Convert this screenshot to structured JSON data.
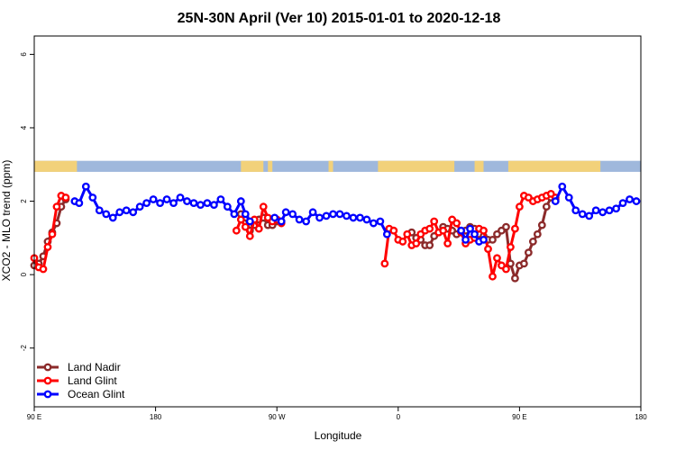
{
  "chart_data": {
    "type": "line",
    "title": "25N-30N April (Ver 10)   2015-01-01 to 2020-12-18",
    "xlabel": "Longitude",
    "ylabel": "XCO2 - MLO trend (ppm)",
    "xlim": [
      -90,
      180
    ],
    "ylim": [
      -3.6,
      6.5
    ],
    "x_ticks": [
      {
        "value": -90,
        "label": "90 E"
      },
      {
        "value": -36,
        "label": "180"
      },
      {
        "value": 18,
        "label": "90 W"
      },
      {
        "value": 72,
        "label": "0"
      },
      {
        "value": 126,
        "label": "90 E"
      },
      {
        "value": 180,
        "label": "180"
      }
    ],
    "y_ticks": [
      -2,
      0,
      2,
      4,
      6
    ],
    "grid": false,
    "legend_position": "bottom-left",
    "surface_strip": {
      "y_range": [
        2.8,
        3.1
      ],
      "ocean_color": "#9fb8dc",
      "land_color": "#f2d17a",
      "land_segments": [
        [
          -90,
          -71
        ],
        [
          2,
          12
        ],
        [
          14,
          16
        ],
        [
          41,
          43
        ],
        [
          63,
          97
        ],
        [
          106,
          110
        ],
        [
          121,
          162
        ]
      ]
    },
    "series": [
      {
        "name": "Land Nadir",
        "color": "#8b2a2a",
        "x": [
          -90,
          -88,
          -86,
          -84,
          -82,
          -80,
          -78,
          -76,
          2,
          4,
          6,
          8,
          10,
          12,
          14,
          16,
          18,
          20,
          78,
          80,
          82,
          84,
          86,
          88,
          90,
          92,
          94,
          96,
          98,
          100,
          102,
          104,
          106,
          108,
          110,
          112,
          114,
          116,
          118,
          120,
          122,
          124,
          126,
          128,
          130,
          132,
          134,
          136,
          138,
          140,
          142
        ],
        "y": [
          0.25,
          0.3,
          0.5,
          0.9,
          1.15,
          1.4,
          1.85,
          2.05,
          1.65,
          1.55,
          1.2,
          1.35,
          1.5,
          1.55,
          1.35,
          1.35,
          1.45,
          1.45,
          1.15,
          1.0,
          0.95,
          0.8,
          0.8,
          1.05,
          1.15,
          1.3,
          1.25,
          1.2,
          1.1,
          1.15,
          1.2,
          1.3,
          1.25,
          1.1,
          1.05,
          0.95,
          0.95,
          1.1,
          1.2,
          1.3,
          0.3,
          -0.1,
          0.25,
          0.3,
          0.6,
          0.9,
          1.1,
          1.35,
          1.85,
          2.1,
          2.05
        ]
      },
      {
        "name": "Land Glint",
        "color": "#ff0000",
        "x": [
          -90,
          -88,
          -86,
          -84,
          -82,
          -80,
          -78,
          -76,
          0,
          2,
          4,
          6,
          8,
          10,
          12,
          14,
          16,
          18,
          20,
          66,
          68,
          70,
          72,
          74,
          76,
          78,
          80,
          82,
          84,
          86,
          88,
          90,
          92,
          94,
          96,
          98,
          100,
          102,
          104,
          106,
          108,
          110,
          112,
          114,
          116,
          118,
          120,
          122,
          124,
          126,
          128,
          130,
          132,
          134,
          136,
          138,
          140,
          142
        ],
        "y": [
          0.45,
          0.2,
          0.15,
          0.75,
          1.1,
          1.85,
          2.15,
          2.1,
          1.2,
          1.5,
          1.3,
          1.05,
          1.5,
          1.25,
          1.85,
          1.55,
          1.45,
          1.5,
          1.4,
          0.3,
          1.25,
          1.2,
          0.95,
          0.9,
          1.1,
          0.8,
          0.85,
          1.1,
          1.2,
          1.25,
          1.45,
          1.15,
          1.2,
          0.85,
          1.5,
          1.4,
          1.15,
          0.85,
          0.95,
          1.0,
          1.25,
          1.2,
          0.7,
          -0.05,
          0.45,
          0.25,
          0.15,
          0.75,
          1.25,
          1.85,
          2.15,
          2.1,
          2.0,
          2.05,
          2.1,
          2.15,
          2.2,
          2.1
        ]
      },
      {
        "name": "Ocean Glint",
        "color": "#0000ff",
        "x": [
          -72,
          -70,
          -67,
          -64,
          -61,
          -58,
          -55,
          -52,
          -49,
          -46,
          -43,
          -40,
          -37,
          -34,
          -31,
          -28,
          -25,
          -22,
          -19,
          -16,
          -13,
          -10,
          -7,
          -4,
          -1,
          2,
          4,
          6,
          17,
          20,
          22,
          25,
          28,
          31,
          34,
          37,
          40,
          43,
          46,
          49,
          52,
          55,
          58,
          61,
          64,
          67,
          100,
          102,
          104,
          106,
          108,
          110,
          142,
          145,
          148,
          151,
          154,
          157,
          160,
          163,
          166,
          169,
          172,
          175,
          178
        ],
        "y": [
          2.0,
          1.95,
          2.4,
          2.1,
          1.75,
          1.65,
          1.55,
          1.7,
          1.75,
          1.7,
          1.85,
          1.95,
          2.05,
          1.95,
          2.05,
          1.95,
          2.1,
          2.0,
          1.95,
          1.9,
          1.95,
          1.9,
          2.05,
          1.85,
          1.65,
          2.0,
          1.65,
          1.45,
          1.55,
          1.45,
          1.7,
          1.65,
          1.5,
          1.45,
          1.7,
          1.55,
          1.6,
          1.65,
          1.65,
          1.6,
          1.55,
          1.55,
          1.5,
          1.4,
          1.45,
          1.1,
          1.2,
          0.95,
          1.25,
          1.1,
          0.9,
          0.95,
          2.0,
          2.4,
          2.1,
          1.75,
          1.65,
          1.6,
          1.75,
          1.7,
          1.75,
          1.8,
          1.95,
          2.05,
          2.0
        ]
      }
    ]
  }
}
